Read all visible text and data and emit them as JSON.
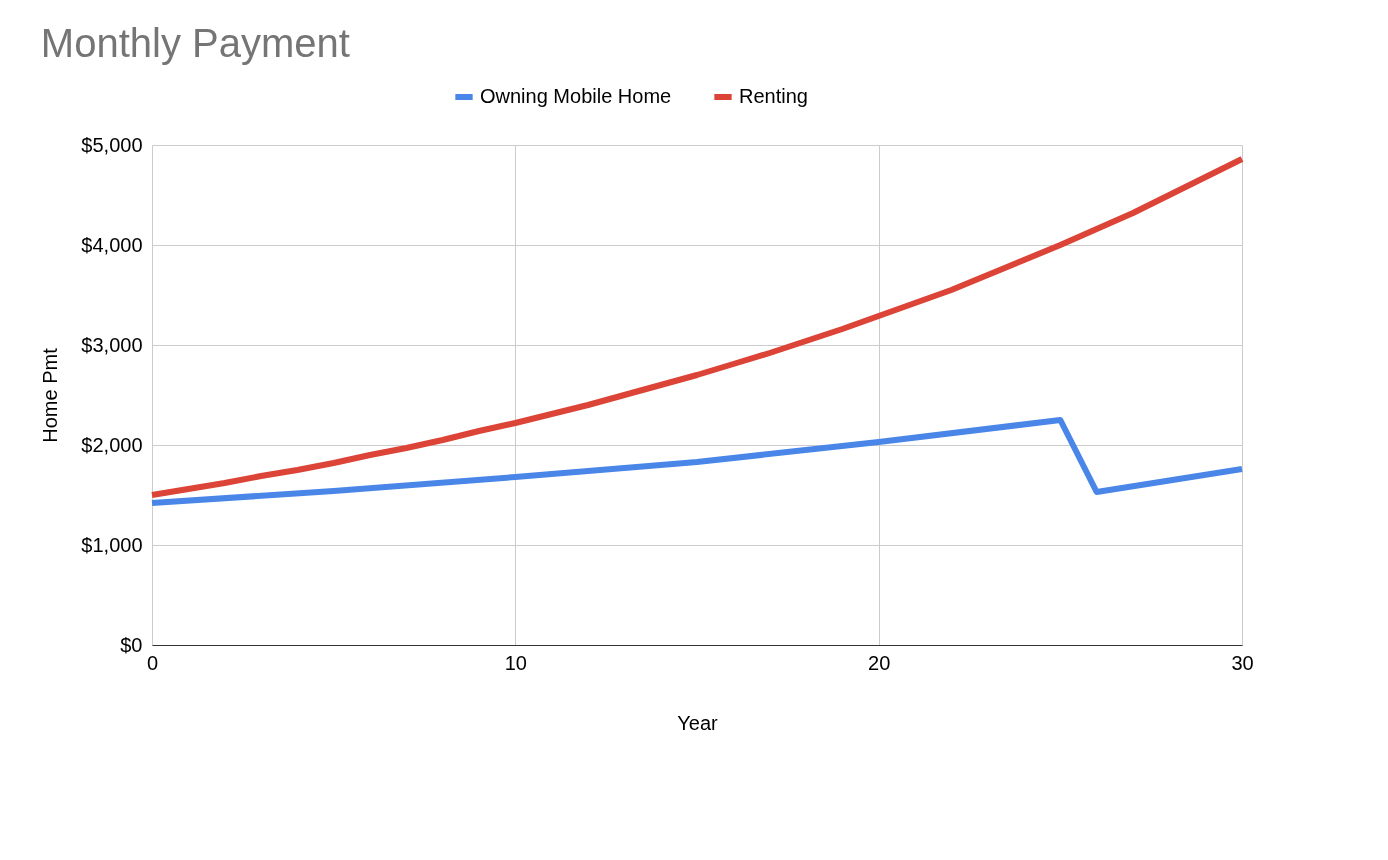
{
  "chart_data": {
    "type": "line",
    "title": "Monthly Payment",
    "xlabel": "Year",
    "ylabel": "Home Pmt",
    "xlim": [
      0,
      30
    ],
    "xticks": [
      0,
      10,
      20,
      30
    ],
    "ylim": [
      0,
      5000
    ],
    "yticks": [
      {
        "value": 0,
        "label": "$0"
      },
      {
        "value": 1000,
        "label": "$1,000"
      },
      {
        "value": 2000,
        "label": "$2,000"
      },
      {
        "value": 3000,
        "label": "$3,000"
      },
      {
        "value": 4000,
        "label": "$4,000"
      },
      {
        "value": 5000,
        "label": "$5,000"
      }
    ],
    "grid": true,
    "legend": "top",
    "marker": "none",
    "line_style": "solid",
    "series": [
      {
        "name": "Owning Mobile Home",
        "color": "#4a86e8",
        "x": [
          0,
          5,
          10,
          15,
          20,
          25,
          26,
          30
        ],
        "values": [
          1420,
          1540,
          1680,
          1830,
          2030,
          2250,
          1530,
          1760
        ]
      },
      {
        "name": "Renting",
        "color": "#db4437",
        "x": [
          0,
          1,
          2,
          3,
          4,
          5,
          6,
          7,
          8,
          9,
          10,
          11,
          12,
          13,
          14,
          15,
          16,
          17,
          18,
          19,
          20,
          21,
          22,
          23,
          24,
          25,
          26,
          27,
          28,
          29,
          30
        ],
        "values": [
          1500,
          1560,
          1620,
          1690,
          1750,
          1820,
          1900,
          1970,
          2050,
          2140,
          2220,
          2310,
          2400,
          2500,
          2600,
          2700,
          2810,
          2920,
          3040,
          3160,
          3290,
          3420,
          3550,
          3700,
          3850,
          4000,
          4160,
          4320,
          4500,
          4680,
          4860
        ]
      }
    ]
  }
}
